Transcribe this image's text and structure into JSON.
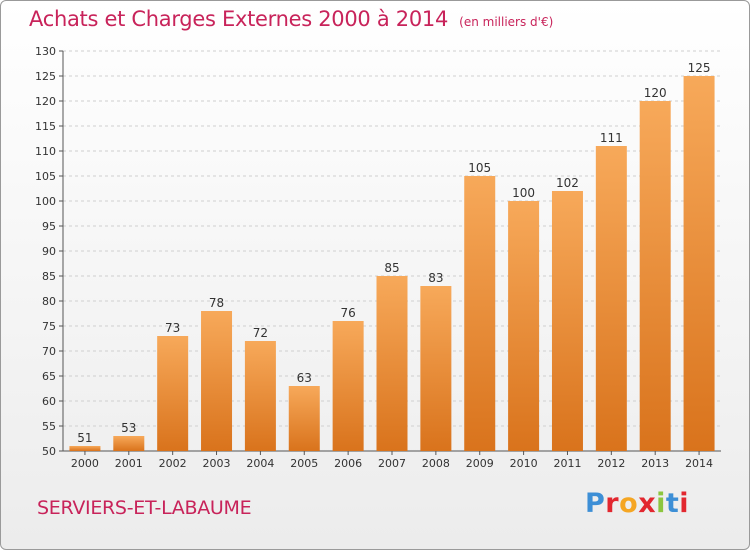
{
  "header": {
    "title": "Achats et Charges Externes 2000 à 2014",
    "unit": "(en milliers d'€)"
  },
  "footer": {
    "city": "SERVIERS-ET-LABAUME",
    "logo_text": "Proxiti",
    "logo_colors": [
      "#3d8fd6",
      "#e2272f",
      "#f5a623",
      "#e2272f",
      "#8cc63f",
      "#3d8fd6",
      "#e2272f"
    ]
  },
  "colors": {
    "bar_light": "#f7a95a",
    "bar_dark": "#d9731c",
    "grid": "#cfcfcf",
    "axis": "#555555",
    "title": "#c8235a"
  },
  "chart_data": {
    "type": "bar",
    "categories": [
      "2000",
      "2001",
      "2002",
      "2003",
      "2004",
      "2005",
      "2006",
      "2007",
      "2008",
      "2009",
      "2010",
      "2011",
      "2012",
      "2013",
      "2014"
    ],
    "values": [
      51,
      53,
      73,
      78,
      72,
      63,
      76,
      85,
      83,
      105,
      100,
      102,
      111,
      120,
      125
    ],
    "ylim": [
      50,
      130
    ],
    "yticks": [
      50,
      55,
      60,
      65,
      70,
      75,
      80,
      85,
      90,
      95,
      100,
      105,
      110,
      115,
      120,
      125,
      130
    ],
    "grid": true,
    "title": "Achats et Charges Externes 2000 à 2014",
    "ylabel": "",
    "xlabel": ""
  }
}
